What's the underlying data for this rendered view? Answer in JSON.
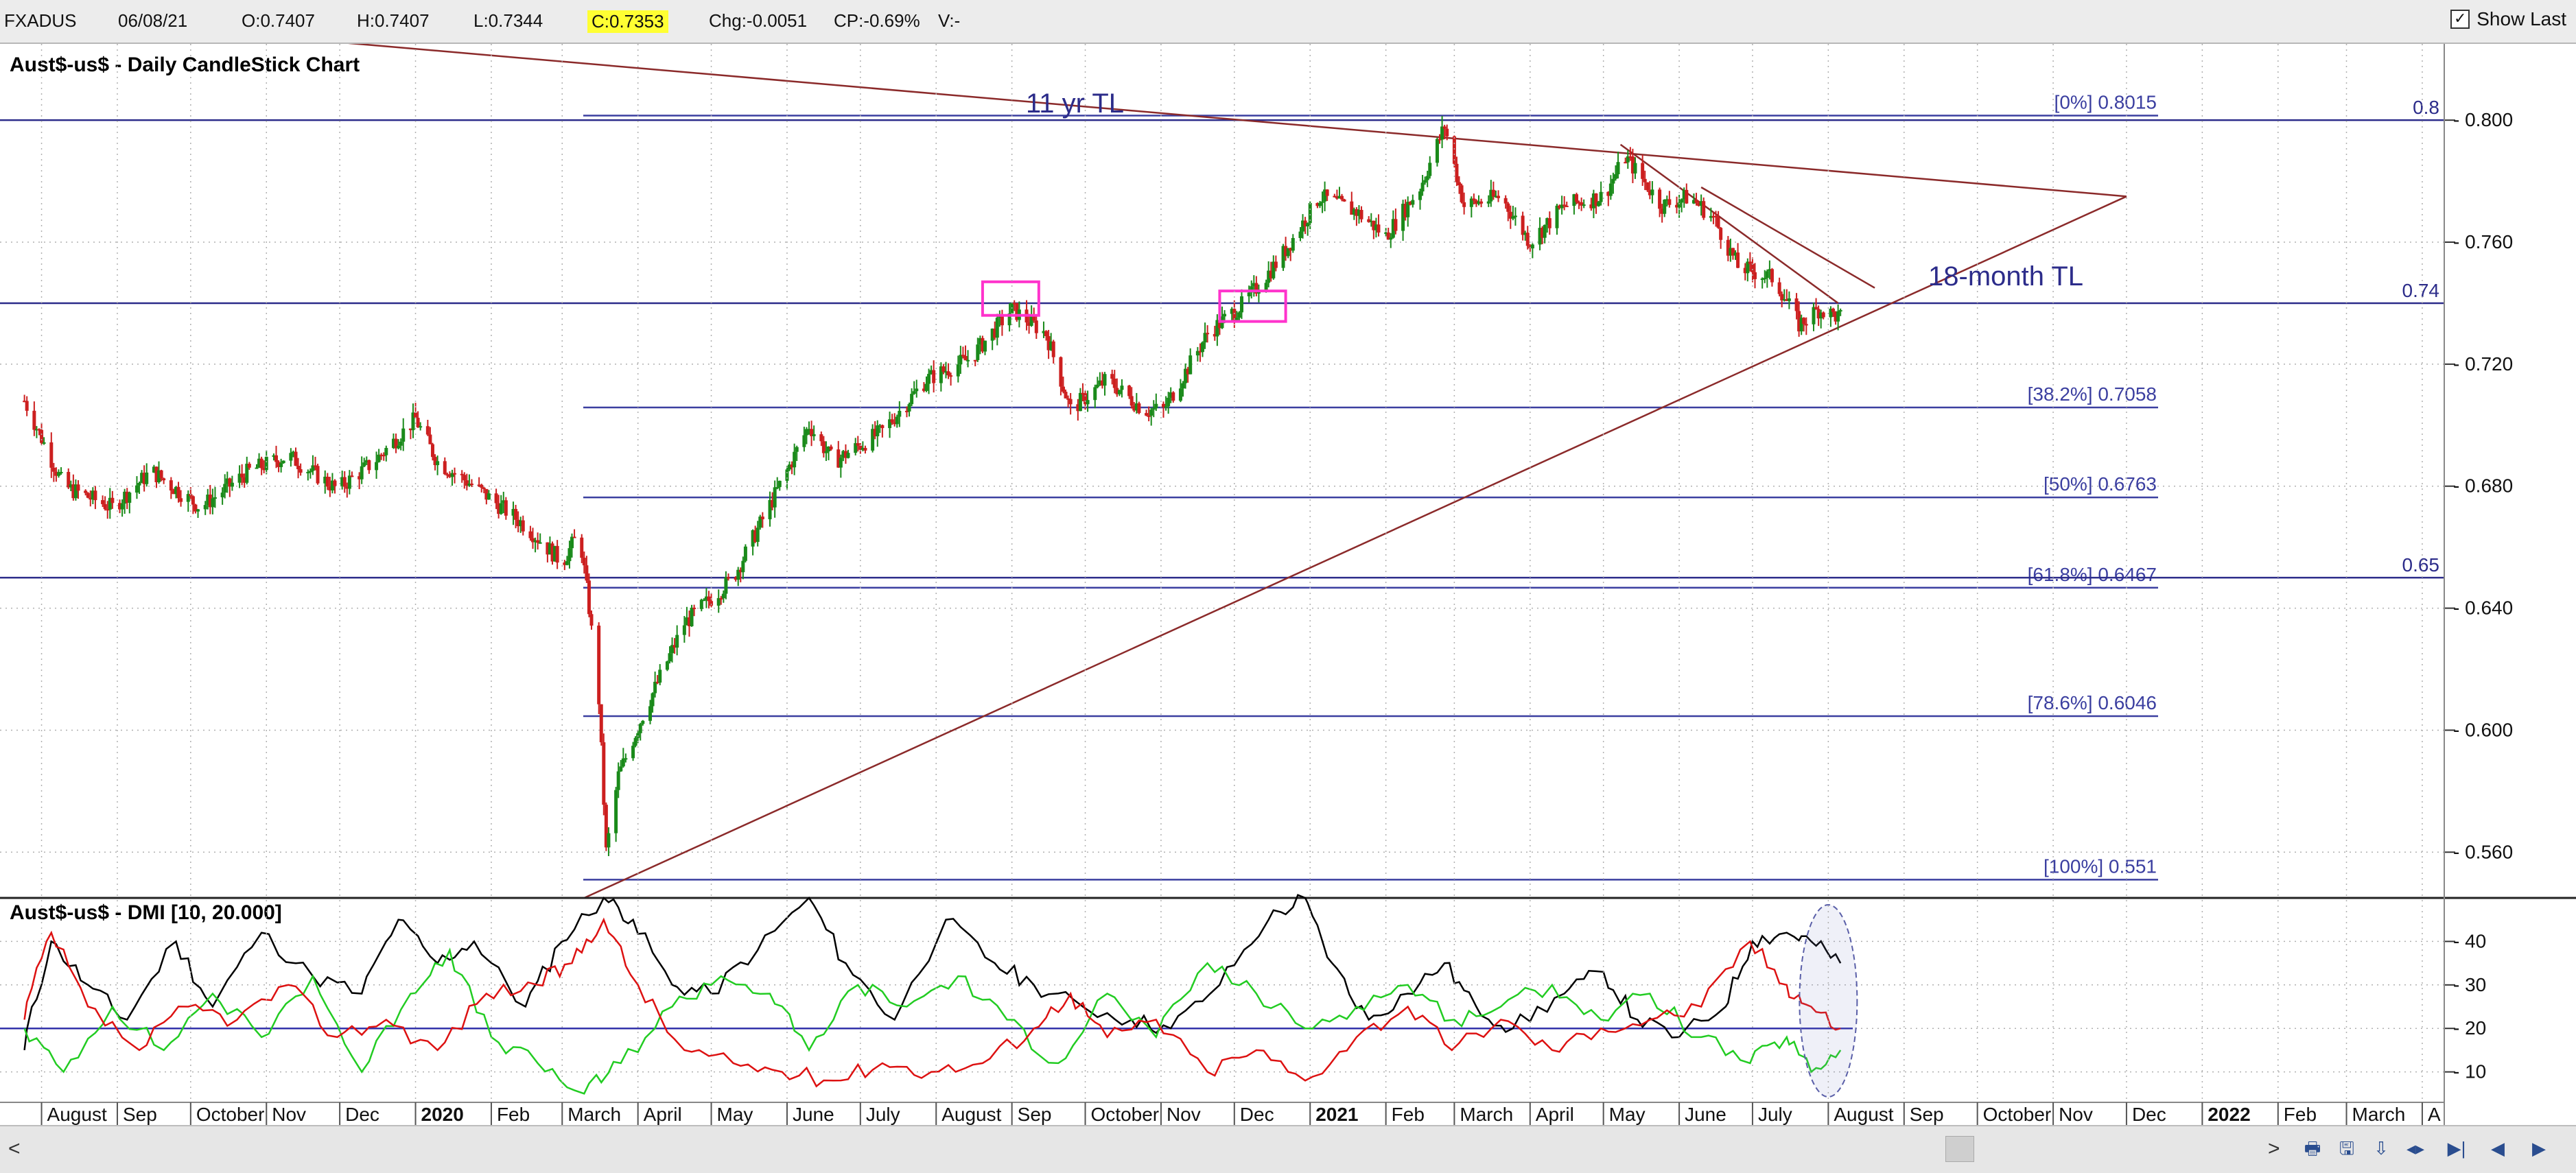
{
  "header": {
    "symbol": "FXADUS",
    "date": "06/08/21",
    "open": "O:0.7407",
    "high": "H:0.7407",
    "low": "L:0.7344",
    "close": "C:0.7353",
    "change": "Chg:-0.0051",
    "change_pct": "CP:-0.69%",
    "volume": "V:-",
    "show_last_label": "Show Last"
  },
  "colors": {
    "fib_line": "#3b3fa0",
    "horizontal_line": "#2c2c8a",
    "trendline": "#8b2a2a",
    "candle_up": "#1a8a1a",
    "candle_down": "#cc1f1f",
    "box": "#ff33cc",
    "dmi_adx": "#000000",
    "dmi_plus": "#22cc22",
    "dmi_minus": "#dd1111",
    "dmi_ref": "#3333aa"
  },
  "chart_data": [
    {
      "type": "candlestick",
      "title": "Aust$-us$ - Daily CandleStick Chart",
      "y_ticks": [
        "0.800",
        "0.760",
        "0.720",
        "0.680",
        "0.640",
        "0.600",
        "0.560"
      ],
      "ylim": [
        0.545,
        0.825
      ],
      "close_path": [
        [
          "2019-07-25",
          0.708
        ],
        [
          "2019-08-10",
          0.68
        ],
        [
          "2019-08-30",
          0.673
        ],
        [
          "2019-09-15",
          0.685
        ],
        [
          "2019-10-05",
          0.673
        ],
        [
          "2019-10-25",
          0.685
        ],
        [
          "2019-11-10",
          0.69
        ],
        [
          "2019-11-30",
          0.679
        ],
        [
          "2019-12-15",
          0.688
        ],
        [
          "2020-01-01",
          0.702
        ],
        [
          "2020-01-10",
          0.688
        ],
        [
          "2020-01-25",
          0.68
        ],
        [
          "2020-02-15",
          0.667
        ],
        [
          "2020-03-01",
          0.655
        ],
        [
          "2020-03-08",
          0.665
        ],
        [
          "2020-03-12",
          0.64
        ],
        [
          "2020-03-16",
          0.61
        ],
        [
          "2020-03-19",
          0.56
        ],
        [
          "2020-03-24",
          0.585
        ],
        [
          "2020-04-03",
          0.605
        ],
        [
          "2020-04-20",
          0.635
        ],
        [
          "2020-05-10",
          0.65
        ],
        [
          "2020-06-01",
          0.685
        ],
        [
          "2020-06-10",
          0.7
        ],
        [
          "2020-06-20",
          0.688
        ],
        [
          "2020-07-10",
          0.698
        ],
        [
          "2020-07-28",
          0.715
        ],
        [
          "2020-08-15",
          0.722
        ],
        [
          "2020-09-01",
          0.738
        ],
        [
          "2020-09-15",
          0.73
        ],
        [
          "2020-09-25",
          0.705
        ],
        [
          "2020-10-10",
          0.715
        ],
        [
          "2020-10-25",
          0.705
        ],
        [
          "2020-11-02",
          0.705
        ],
        [
          "2020-11-20",
          0.73
        ],
        [
          "2020-12-05",
          0.74
        ],
        [
          "2020-12-20",
          0.755
        ],
        [
          "2021-01-05",
          0.775
        ],
        [
          "2021-01-20",
          0.77
        ],
        [
          "2021-02-01",
          0.762
        ],
        [
          "2021-02-15",
          0.778
        ],
        [
          "2021-02-25",
          0.798
        ],
        [
          "2021-03-05",
          0.772
        ],
        [
          "2021-03-20",
          0.775
        ],
        [
          "2021-04-01",
          0.76
        ],
        [
          "2021-04-15",
          0.772
        ],
        [
          "2021-05-01",
          0.775
        ],
        [
          "2021-05-10",
          0.788
        ],
        [
          "2021-05-25",
          0.772
        ],
        [
          "2021-06-05",
          0.775
        ],
        [
          "2021-06-15",
          0.768
        ],
        [
          "2021-06-25",
          0.752
        ],
        [
          "2021-07-10",
          0.748
        ],
        [
          "2021-07-20",
          0.733
        ],
        [
          "2021-07-28",
          0.738
        ],
        [
          "2021-08-06",
          0.7353
        ]
      ],
      "fib_levels": [
        {
          "label": "[0%] 0.8015",
          "value": 0.8015
        },
        {
          "label": "[38.2%] 0.7058",
          "value": 0.7058
        },
        {
          "label": "[50%] 0.6763",
          "value": 0.6763
        },
        {
          "label": "[61.8%] 0.6467",
          "value": 0.6467
        },
        {
          "label": "[78.6%] 0.6046",
          "value": 0.6046
        },
        {
          "label": "[100%] 0.551",
          "value": 0.551
        }
      ],
      "horizontal_lines": [
        {
          "label": "0.8",
          "value": 0.8
        },
        {
          "label": "0.74",
          "value": 0.74
        },
        {
          "label": "0.65",
          "value": 0.65
        }
      ],
      "annotations": [
        {
          "text": "11 yr TL"
        },
        {
          "text": "18-month TL"
        }
      ],
      "boxes": [
        {
          "x_from": "2020-08-20",
          "x_to": "2020-09-12",
          "y_from": 0.736,
          "y_to": 0.747
        },
        {
          "x_from": "2020-11-25",
          "x_to": "2020-12-22",
          "y_from": 0.734,
          "y_to": 0.744
        }
      ],
      "trendlines": [
        {
          "name": "11 yr TL",
          "from": [
            "2019-06-25",
            0.8365
          ],
          "to": [
            "2021-12-01",
            0.775
          ]
        },
        {
          "name": "18-month TL",
          "from": [
            "2020-03-10",
            0.545
          ],
          "to": [
            "2021-12-01",
            0.775
          ]
        },
        {
          "from": [
            "2021-05-08",
            0.792
          ],
          "to": [
            "2021-08-05",
            0.74
          ]
        },
        {
          "from": [
            "2021-06-10",
            0.778
          ],
          "to": [
            "2021-08-20",
            0.745
          ]
        }
      ],
      "x_ticks": [
        {
          "label": "August",
          "date": "2019-08-01"
        },
        {
          "label": "Sep",
          "date": "2019-09-01"
        },
        {
          "label": "October",
          "date": "2019-10-01"
        },
        {
          "label": "Nov",
          "date": "2019-11-01"
        },
        {
          "label": "Dec",
          "date": "2019-12-01"
        },
        {
          "label": "2020",
          "date": "2020-01-01",
          "bold": true
        },
        {
          "label": "Feb",
          "date": "2020-02-01"
        },
        {
          "label": "March",
          "date": "2020-03-01"
        },
        {
          "label": "April",
          "date": "2020-04-01"
        },
        {
          "label": "May",
          "date": "2020-05-01"
        },
        {
          "label": "June",
          "date": "2020-06-01"
        },
        {
          "label": "July",
          "date": "2020-07-01"
        },
        {
          "label": "August",
          "date": "2020-08-01"
        },
        {
          "label": "Sep",
          "date": "2020-09-01"
        },
        {
          "label": "October",
          "date": "2020-10-01"
        },
        {
          "label": "Nov",
          "date": "2020-11-01"
        },
        {
          "label": "Dec",
          "date": "2020-12-01"
        },
        {
          "label": "2021",
          "date": "2021-01-01",
          "bold": true
        },
        {
          "label": "Feb",
          "date": "2021-02-01"
        },
        {
          "label": "March",
          "date": "2021-03-01"
        },
        {
          "label": "April",
          "date": "2021-04-01"
        },
        {
          "label": "May",
          "date": "2021-05-01"
        },
        {
          "label": "June",
          "date": "2021-06-01"
        },
        {
          "label": "July",
          "date": "2021-07-01"
        },
        {
          "label": "August",
          "date": "2021-08-01"
        },
        {
          "label": "Sep",
          "date": "2021-09-01"
        },
        {
          "label": "October",
          "date": "2021-10-01"
        },
        {
          "label": "Nov",
          "date": "2021-11-01"
        },
        {
          "label": "Dec",
          "date": "2021-12-01"
        },
        {
          "label": "2022",
          "date": "2022-01-01",
          "bold": true
        },
        {
          "label": "Feb",
          "date": "2022-02-01"
        },
        {
          "label": "March",
          "date": "2022-03-01"
        },
        {
          "label": "A",
          "date": "2022-04-01"
        }
      ],
      "x_range": [
        "2019-07-15",
        "2022-04-10"
      ]
    },
    {
      "type": "line",
      "title": "Aust$-us$ - DMI [10, 20.000]",
      "y_ticks": [
        "40",
        "30",
        "20",
        "10"
      ],
      "ylim": [
        3,
        50
      ],
      "reference_line": 20,
      "series": [
        {
          "color": "#000000",
          "values": [
            [
              "2019-07-25",
              15
            ],
            [
              "2019-08-05",
              40
            ],
            [
              "2019-08-20",
              30
            ],
            [
              "2019-09-05",
              22
            ],
            [
              "2019-09-25",
              40
            ],
            [
              "2019-10-10",
              25
            ],
            [
              "2019-10-30",
              42
            ],
            [
              "2019-11-20",
              32
            ],
            [
              "2019-12-10",
              28
            ],
            [
              "2019-12-25",
              45
            ],
            [
              "2020-01-10",
              35
            ],
            [
              "2020-01-25",
              40
            ],
            [
              "2020-02-15",
              25
            ],
            [
              "2020-03-01",
              40
            ],
            [
              "2020-03-18",
              50
            ],
            [
              "2020-03-30",
              45
            ],
            [
              "2020-04-15",
              30
            ],
            [
              "2020-05-01",
              28
            ],
            [
              "2020-05-20",
              38
            ],
            [
              "2020-06-10",
              50
            ],
            [
              "2020-06-25",
              35
            ],
            [
              "2020-07-15",
              22
            ],
            [
              "2020-08-05",
              45
            ],
            [
              "2020-08-25",
              35
            ],
            [
              "2020-09-10",
              30
            ],
            [
              "2020-09-30",
              25
            ],
            [
              "2020-10-20",
              22
            ],
            [
              "2020-11-05",
              20
            ],
            [
              "2020-11-25",
              30
            ],
            [
              "2020-12-15",
              45
            ],
            [
              "2020-12-30",
              50
            ],
            [
              "2021-01-10",
              35
            ],
            [
              "2021-01-25",
              22
            ],
            [
              "2021-02-10",
              28
            ],
            [
              "2021-02-25",
              35
            ],
            [
              "2021-03-10",
              25
            ],
            [
              "2021-03-25",
              20
            ],
            [
              "2021-04-15",
              28
            ],
            [
              "2021-05-01",
              33
            ],
            [
              "2021-05-15",
              22
            ],
            [
              "2021-06-01",
              18
            ],
            [
              "2021-06-20",
              25
            ],
            [
              "2021-07-01",
              40
            ],
            [
              "2021-07-15",
              42
            ],
            [
              "2021-07-25",
              40
            ],
            [
              "2021-08-06",
              35
            ]
          ]
        },
        {
          "color": "#22cc22",
          "values": [
            [
              "2019-07-25",
              20
            ],
            [
              "2019-08-10",
              10
            ],
            [
              "2019-08-30",
              25
            ],
            [
              "2019-09-20",
              15
            ],
            [
              "2019-10-10",
              28
            ],
            [
              "2019-10-30",
              18
            ],
            [
              "2019-11-20",
              32
            ],
            [
              "2019-12-10",
              10
            ],
            [
              "2019-12-30",
              28
            ],
            [
              "2020-01-15",
              38
            ],
            [
              "2020-02-01",
              18
            ],
            [
              "2020-02-20",
              12
            ],
            [
              "2020-03-10",
              5
            ],
            [
              "2020-03-25",
              12
            ],
            [
              "2020-04-15",
              25
            ],
            [
              "2020-05-05",
              32
            ],
            [
              "2020-05-25",
              28
            ],
            [
              "2020-06-10",
              15
            ],
            [
              "2020-06-30",
              30
            ],
            [
              "2020-07-20",
              25
            ],
            [
              "2020-08-10",
              32
            ],
            [
              "2020-08-30",
              22
            ],
            [
              "2020-09-20",
              12
            ],
            [
              "2020-10-10",
              28
            ],
            [
              "2020-10-30",
              18
            ],
            [
              "2020-11-20",
              35
            ],
            [
              "2020-12-10",
              28
            ],
            [
              "2020-12-30",
              20
            ],
            [
              "2021-01-20",
              25
            ],
            [
              "2021-02-10",
              30
            ],
            [
              "2021-03-01",
              22
            ],
            [
              "2021-03-20",
              25
            ],
            [
              "2021-04-10",
              30
            ],
            [
              "2021-04-30",
              22
            ],
            [
              "2021-05-20",
              28
            ],
            [
              "2021-06-10",
              18
            ],
            [
              "2021-06-30",
              12
            ],
            [
              "2021-07-15",
              18
            ],
            [
              "2021-07-25",
              10
            ],
            [
              "2021-08-06",
              15
            ]
          ]
        },
        {
          "color": "#dd1111",
          "values": [
            [
              "2019-07-25",
              22
            ],
            [
              "2019-08-05",
              42
            ],
            [
              "2019-08-20",
              25
            ],
            [
              "2019-09-10",
              15
            ],
            [
              "2019-09-30",
              25
            ],
            [
              "2019-10-20",
              22
            ],
            [
              "2019-11-10",
              30
            ],
            [
              "2019-11-30",
              18
            ],
            [
              "2019-12-20",
              22
            ],
            [
              "2020-01-10",
              15
            ],
            [
              "2020-01-30",
              28
            ],
            [
              "2020-02-20",
              30
            ],
            [
              "2020-03-05",
              35
            ],
            [
              "2020-03-18",
              45
            ],
            [
              "2020-04-01",
              30
            ],
            [
              "2020-04-20",
              15
            ],
            [
              "2020-05-10",
              12
            ],
            [
              "2020-05-30",
              10
            ],
            [
              "2020-06-20",
              8
            ],
            [
              "2020-07-10",
              12
            ],
            [
              "2020-07-30",
              10
            ],
            [
              "2020-08-20",
              12
            ],
            [
              "2020-09-10",
              20
            ],
            [
              "2020-09-25",
              28
            ],
            [
              "2020-10-10",
              18
            ],
            [
              "2020-10-30",
              22
            ],
            [
              "2020-11-20",
              10
            ],
            [
              "2020-12-10",
              15
            ],
            [
              "2020-12-30",
              8
            ],
            [
              "2021-01-20",
              18
            ],
            [
              "2021-02-10",
              25
            ],
            [
              "2021-02-28",
              15
            ],
            [
              "2021-03-20",
              22
            ],
            [
              "2021-04-10",
              15
            ],
            [
              "2021-04-30",
              20
            ],
            [
              "2021-05-20",
              22
            ],
            [
              "2021-06-10",
              25
            ],
            [
              "2021-06-30",
              40
            ],
            [
              "2021-07-15",
              30
            ],
            [
              "2021-07-25",
              25
            ],
            [
              "2021-08-06",
              20
            ]
          ]
        }
      ],
      "x_range": [
        "2019-07-15",
        "2022-04-10"
      ]
    }
  ]
}
